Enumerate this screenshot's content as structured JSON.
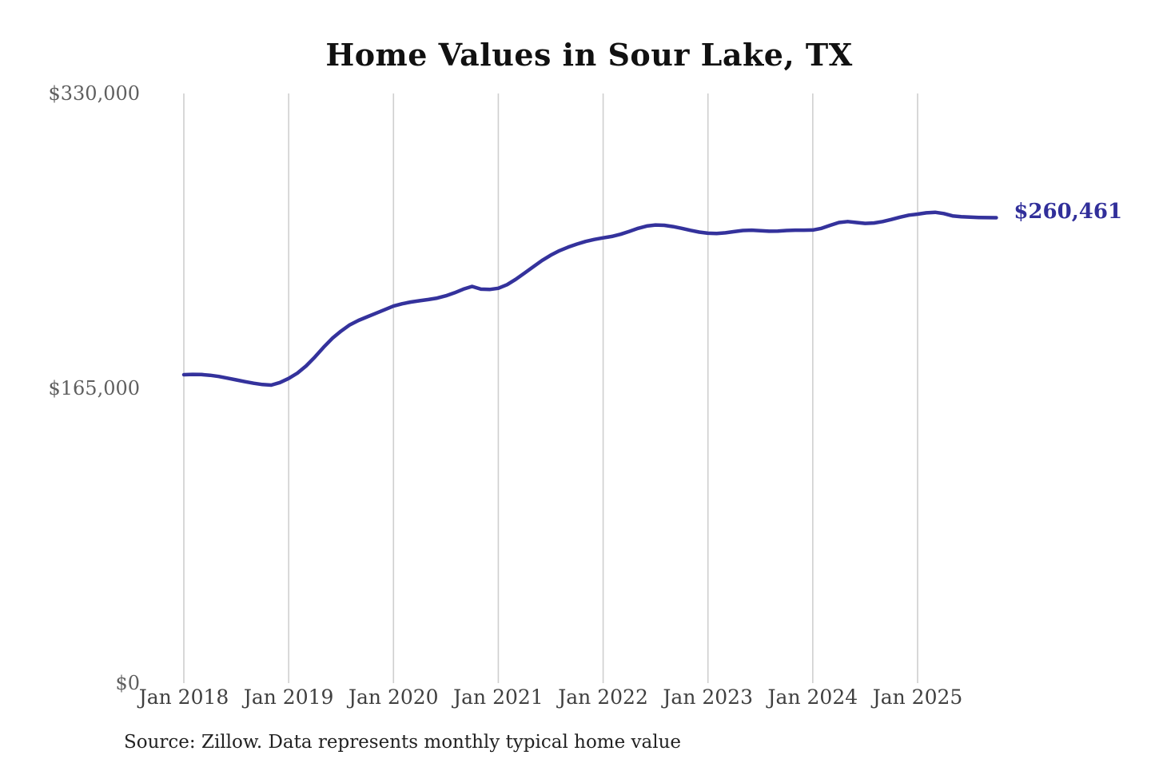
{
  "title": "Home Values in Sour Lake, TX",
  "source_note": "Source: Zillow. Data represents monthly typical home value",
  "colors": {
    "line": "#34329c",
    "end_label": "#312f9a",
    "grid": "#cfcfcf",
    "y_label": "#5f5f5f",
    "x_label": "#404040",
    "title": "#111111",
    "source": "#222222",
    "background": "#ffffff"
  },
  "chart_data": {
    "type": "line",
    "title": "Home Values in Sour Lake, TX",
    "series_name": "Monthly typical home value",
    "x_start": "Jan 2018",
    "x_end": "Oct 2025",
    "x_interval": "monthly",
    "x_tick_labels": [
      "Jan 2018",
      "Jan 2019",
      "Jan 2020",
      "Jan 2021",
      "Jan 2022",
      "Jan 2023",
      "Jan 2024",
      "Jan 2025"
    ],
    "months_per_tick": 12,
    "values": [
      172600,
      172800,
      172700,
      172300,
      171600,
      170700,
      169700,
      168700,
      167800,
      167100,
      166800,
      168200,
      170500,
      173500,
      177500,
      182500,
      188000,
      193000,
      197000,
      200500,
      203000,
      205000,
      207000,
      209000,
      211000,
      212300,
      213300,
      214000,
      214700,
      215500,
      216800,
      218500,
      220500,
      222000,
      220500,
      220300,
      221000,
      223000,
      226000,
      229500,
      233000,
      236500,
      239500,
      242000,
      244000,
      245700,
      247200,
      248300,
      249200,
      250000,
      251200,
      252800,
      254500,
      255800,
      256400,
      256200,
      255500,
      254500,
      253400,
      252400,
      251800,
      251600,
      252000,
      252700,
      253300,
      253500,
      253200,
      252900,
      253000,
      253300,
      253500,
      253500,
      253600,
      254500,
      256200,
      257800,
      258300,
      257800,
      257300,
      257500,
      258300,
      259500,
      260800,
      261900,
      262500,
      263200,
      263500,
      262800,
      261500,
      261000,
      260800,
      260600,
      260500,
      260461
    ],
    "y_ticks": [
      {
        "label": "$0",
        "value": 0
      },
      {
        "label": "$165,000",
        "value": 165000
      },
      {
        "label": "$330,000",
        "value": 330000
      }
    ],
    "ylim": [
      0,
      330000
    ],
    "grid": "vertical-only",
    "legend_position": "none",
    "last_value": 260461,
    "last_value_label": "$260,461"
  }
}
